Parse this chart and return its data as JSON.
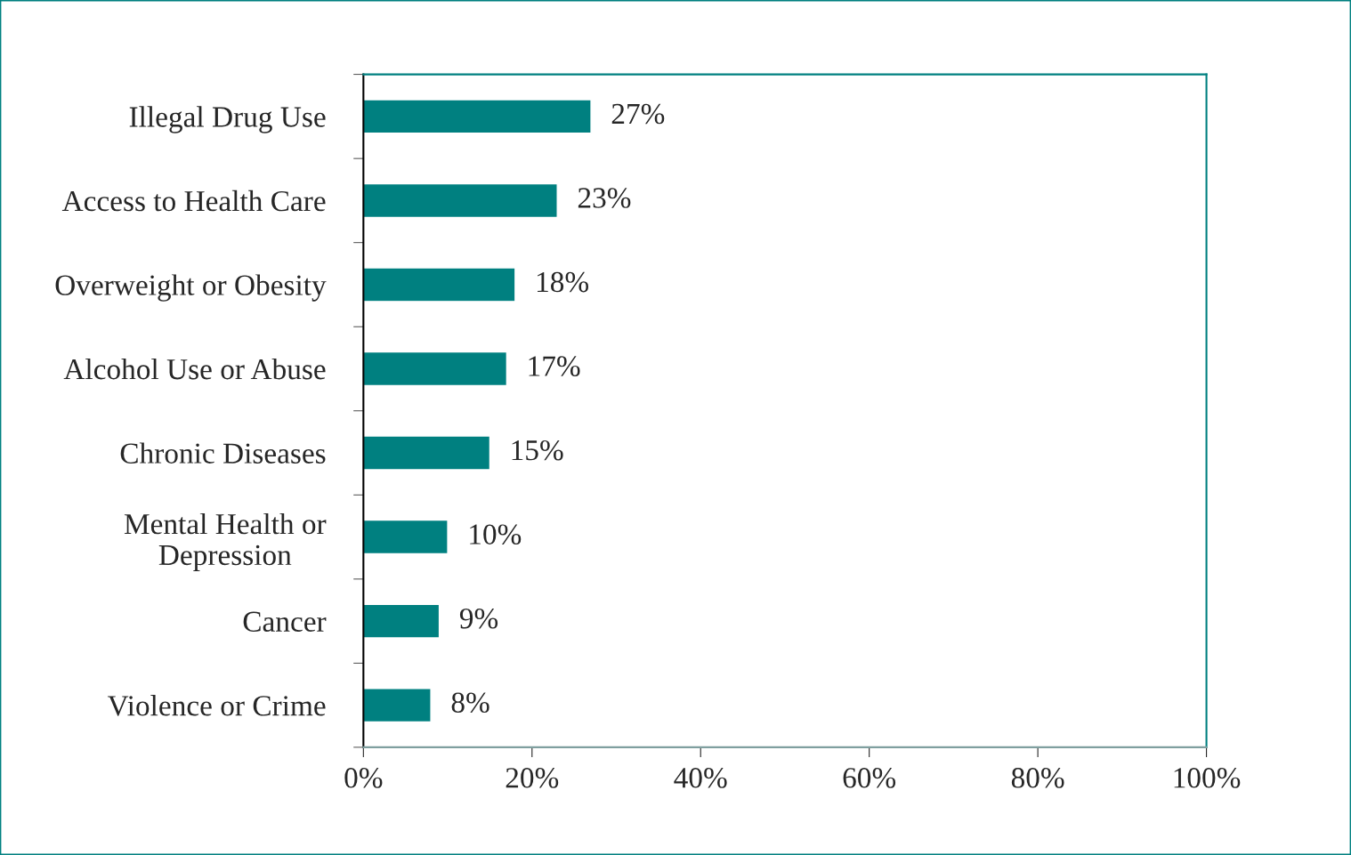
{
  "chart_data": {
    "type": "bar",
    "orientation": "horizontal",
    "categories": [
      "Illegal Drug Use",
      "Access to Health Care",
      "Overweight or Obesity",
      "Alcohol Use or Abuse",
      "Chronic Diseases",
      "Mental Health or\nDepression",
      "Cancer",
      "Violence or Crime"
    ],
    "values": [
      27,
      23,
      18,
      17,
      15,
      10,
      9,
      8
    ],
    "value_labels": [
      "27%",
      "23%",
      "18%",
      "17%",
      "15%",
      "10%",
      "9%",
      "8%"
    ],
    "color": "#008080",
    "xlim": [
      0,
      100
    ],
    "xticks": [
      {
        "value": 0,
        "label": "0%"
      },
      {
        "value": 20,
        "label": "20%"
      },
      {
        "value": 40,
        "label": "40%"
      },
      {
        "value": 60,
        "label": "60%"
      },
      {
        "value": 80,
        "label": "80%"
      },
      {
        "value": 100,
        "label": "100%"
      }
    ],
    "grid": false,
    "legend": false
  }
}
